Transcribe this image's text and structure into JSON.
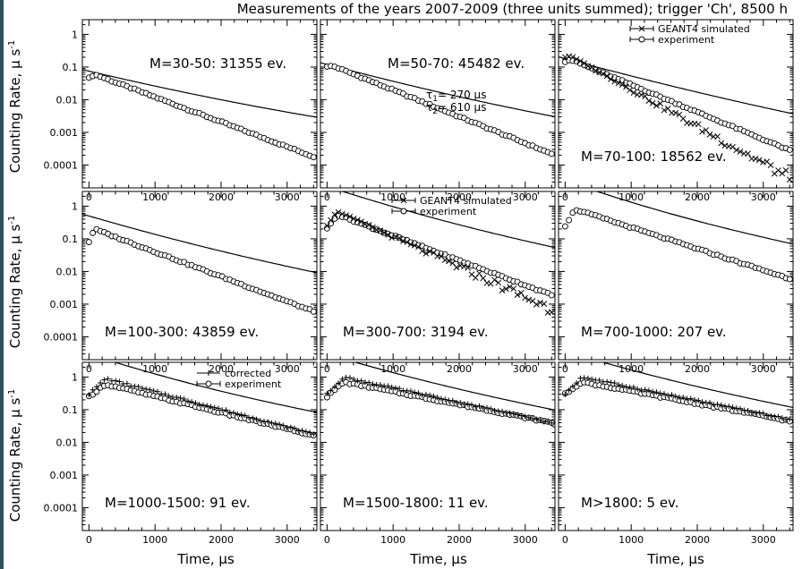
{
  "figure": {
    "title": "Measurements of the years 2007-2009 (three units summed); trigger 'Ch', 8500 h",
    "xlabel": "Time,  µs",
    "ylabel": "Counting Rate,  µ s",
    "ylabel_exponent": "-1",
    "tau_label": {
      "tau1_symbol": "τ",
      "tau1_sub": "1",
      "tau1_value": "= 270  µs",
      "tau2_symbol": "τ",
      "tau2_sub": "2",
      "tau2_value": "= 610  µs"
    },
    "legend_geant": {
      "sim": "GEANT4 simulated",
      "exp": "experiment"
    },
    "legend_corr": {
      "corr": "corrected",
      "exp": "experiment"
    },
    "colors": {
      "axes": "#000000",
      "markers": "#000000",
      "background": "#ffffff",
      "left_strip": "#2f4f5f"
    }
  },
  "chart_data": [
    {
      "type": "scatter",
      "row": 0,
      "col": 0,
      "panel_label": "M=30-50: 31355 ev.",
      "xlim": [
        -100,
        3450
      ],
      "ylim_log10": [
        -4.7,
        0.45
      ],
      "yticks": [
        "1",
        "0.1",
        "0.01",
        "0.001",
        "0.0001"
      ],
      "xticks": [
        "0",
        "1000",
        "2000",
        "3000"
      ],
      "fit": {
        "A": 0.075,
        "B": 0.00089,
        "C": 0.00063
      },
      "series": [
        {
          "name": "experiment",
          "marker": "circle",
          "x": [
            0,
            60,
            3400
          ],
          "y": [
            0.045,
            0.06,
            0.00018
          ]
        }
      ]
    },
    {
      "type": "scatter",
      "row": 0,
      "col": 1,
      "panel_label": "M=50-70: 45482 ev.",
      "xlim": [
        -100,
        3450
      ],
      "ylim_log10": [
        -4.7,
        0.45
      ],
      "yticks": [
        "1",
        "0.1",
        "0.01",
        "0.001",
        "0.0001"
      ],
      "xticks": [
        "0",
        "1000",
        "2000",
        "3000"
      ],
      "fit": {
        "A": 0.12,
        "B": 0.00099,
        "C": 0.00075
      },
      "series": [
        {
          "name": "experiment",
          "marker": "circle",
          "x": [
            0,
            60,
            3400
          ],
          "y": [
            0.1,
            0.11,
            0.00022
          ]
        }
      ],
      "show_tau": true
    },
    {
      "type": "scatter",
      "row": 0,
      "col": 2,
      "panel_label": "M=70-100: 18562 ev.",
      "xlim": [
        -100,
        3450
      ],
      "ylim_log10": [
        -4.7,
        0.45
      ],
      "yticks": [
        "1",
        "0.1",
        "0.01",
        "0.001",
        "0.0001"
      ],
      "xticks": [
        "0",
        "1000",
        "2000",
        "3000"
      ],
      "fit": {
        "A": 0.18,
        "B": 0.00099,
        "C": 0.00083
      },
      "series": [
        {
          "name": "experiment",
          "marker": "circle",
          "x": [
            0,
            60,
            3400
          ],
          "y": [
            0.15,
            0.17,
            0.00028
          ]
        },
        {
          "name": "GEANT4 simulated",
          "marker": "x",
          "x": [
            0,
            60,
            3400
          ],
          "y": [
            0.2,
            0.22,
            4e-05
          ]
        }
      ],
      "legend": "geant"
    },
    {
      "type": "scatter",
      "row": 1,
      "col": 0,
      "panel_label": "M=100-300: 43859 ev.",
      "xlim": [
        -100,
        3450
      ],
      "ylim_log10": [
        -4.7,
        0.45
      ],
      "yticks": [
        "1",
        "0.1",
        "0.01",
        "0.001",
        "0.0001"
      ],
      "xticks": [
        "0",
        "1000",
        "2000",
        "3000"
      ],
      "fit": {
        "A": 0.5,
        "B": 0.00108,
        "C": 0.00083
      },
      "series": [
        {
          "name": "experiment",
          "marker": "circle",
          "x": [
            0,
            60,
            3400
          ],
          "y": [
            0.08,
            0.2,
            0.0006
          ]
        }
      ]
    },
    {
      "type": "scatter",
      "row": 1,
      "col": 1,
      "panel_label": "M=300-700: 3194 ev.",
      "xlim": [
        -100,
        3450
      ],
      "ylim_log10": [
        -4.7,
        0.45
      ],
      "yticks": [
        "1",
        "0.1",
        "0.01",
        "0.001",
        "0.0001"
      ],
      "xticks": [
        "0",
        "1000",
        "2000",
        "3000"
      ],
      "fit": {
        "A": 4.0,
        "B": 0.0012,
        "C": 0.0009
      },
      "series": [
        {
          "name": "experiment",
          "marker": "circle",
          "x": [
            0,
            60,
            3400
          ],
          "y": [
            0.2,
            0.55,
            0.0019
          ]
        },
        {
          "name": "GEANT4 simulated",
          "marker": "x",
          "x": [
            0,
            60,
            3400
          ],
          "y": [
            0.25,
            0.7,
            0.0007
          ]
        }
      ],
      "legend": "geant"
    },
    {
      "type": "scatter",
      "row": 1,
      "col": 2,
      "panel_label": "M=700-1000: 207 ev.",
      "xlim": [
        -100,
        3450
      ],
      "ylim_log10": [
        -4.7,
        0.45
      ],
      "yticks": [
        "1",
        "0.1",
        "0.01",
        "0.001",
        "0.0001"
      ],
      "xticks": [
        "0",
        "1000",
        "2000",
        "3000"
      ],
      "fit": {
        "A": 6.0,
        "B": 0.0013,
        "C": 0.00093
      },
      "series": [
        {
          "name": "experiment",
          "marker": "circle",
          "x": [
            0,
            60,
            3400
          ],
          "y": [
            0.25,
            0.8,
            0.006
          ]
        }
      ]
    },
    {
      "type": "scatter",
      "row": 2,
      "col": 0,
      "panel_label": "M=1000-1500: 91 ev.",
      "xlim": [
        -100,
        3450
      ],
      "ylim_log10": [
        -4.7,
        0.45
      ],
      "yticks": [
        "1",
        "0.1",
        "0.01",
        "0.001",
        "0.0001"
      ],
      "xticks": [
        "0",
        "1000",
        "2000",
        "3000"
      ],
      "fit": {
        "A": 5.0,
        "B": 0.0012,
        "C": 0.00083
      },
      "series": [
        {
          "name": "experiment",
          "marker": "circle",
          "x": [
            0,
            60,
            3400
          ],
          "y": [
            0.25,
            0.6,
            0.016
          ]
        },
        {
          "name": "corrected",
          "marker": "plus",
          "x": [
            0,
            60,
            3400
          ],
          "y": [
            0.3,
            0.9,
            0.018
          ]
        }
      ],
      "legend": "corr"
    },
    {
      "type": "scatter",
      "row": 2,
      "col": 1,
      "panel_label": "M=1500-1800: 11 ev.",
      "xlim": [
        -100,
        3450
      ],
      "ylim_log10": [
        -4.7,
        0.45
      ],
      "yticks": [
        "1",
        "0.1",
        "0.01",
        "0.001",
        "0.0001"
      ],
      "xticks": [
        "0",
        "1000",
        "2000",
        "3000"
      ],
      "fit": {
        "A": 5.0,
        "B": 0.0011,
        "C": 0.0008
      },
      "series": [
        {
          "name": "experiment",
          "marker": "circle",
          "x": [
            0,
            60,
            3400
          ],
          "y": [
            0.25,
            0.7,
            0.04
          ]
        },
        {
          "name": "corrected",
          "marker": "plus",
          "x": [
            0,
            60,
            3400
          ],
          "y": [
            0.3,
            1.0,
            0.04
          ]
        }
      ]
    },
    {
      "type": "scatter",
      "row": 2,
      "col": 2,
      "panel_label": "M>1800: 5 ev.",
      "xlim": [
        -100,
        3450
      ],
      "ylim_log10": [
        -4.7,
        0.45
      ],
      "yticks": [
        "1",
        "0.1",
        "0.01",
        "0.001",
        "0.0001"
      ],
      "xticks": [
        "0",
        "1000",
        "2000",
        "3000"
      ],
      "fit": {
        "A": 6.0,
        "B": 0.0011,
        "C": 0.0008
      },
      "series": [
        {
          "name": "experiment",
          "marker": "circle",
          "x": [
            0,
            60,
            3400
          ],
          "y": [
            0.3,
            0.7,
            0.045
          ]
        },
        {
          "name": "corrected",
          "marker": "plus",
          "x": [
            0,
            60,
            3400
          ],
          "y": [
            0.3,
            1.0,
            0.05
          ]
        }
      ]
    }
  ]
}
